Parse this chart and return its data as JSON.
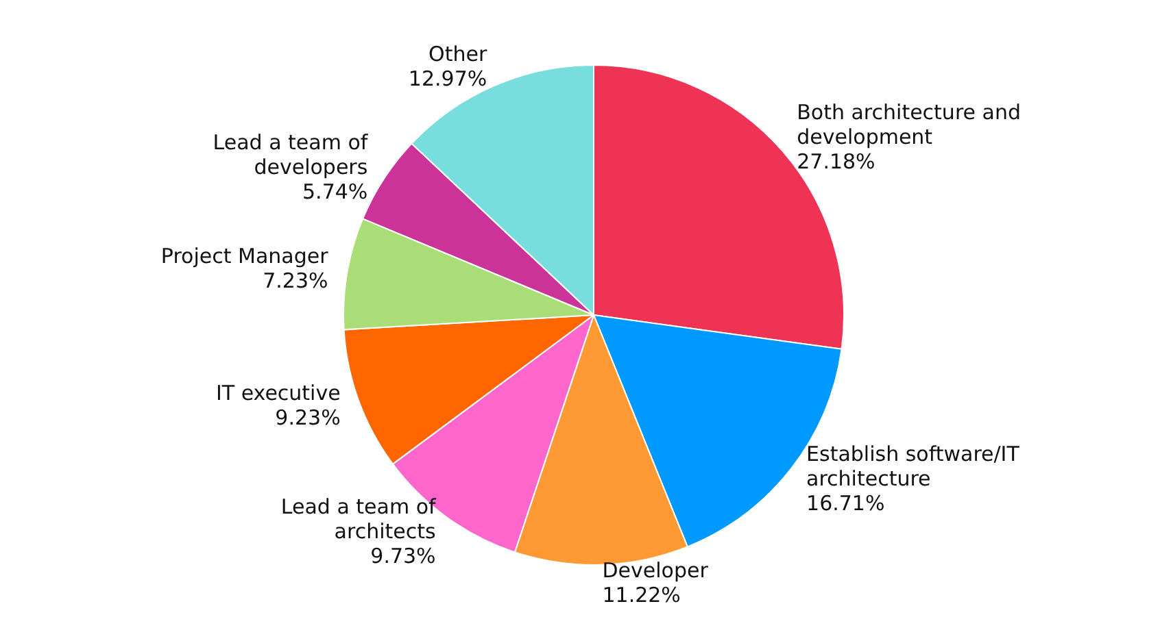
{
  "chart_data": {
    "type": "pie",
    "categories": [
      "Both architecture and development",
      "Establish software/IT architecture",
      "Developer",
      "Lead a team of architects",
      "IT executive",
      "Project Manager",
      "Lead a team of developers",
      "Other"
    ],
    "values": [
      27.18,
      16.71,
      11.22,
      9.73,
      9.23,
      7.23,
      5.74,
      12.97
    ],
    "value_labels": [
      "27.18%",
      "16.71%",
      "11.22%",
      "9.73%",
      "9.23%",
      "7.23%",
      "5.74%",
      "12.97%"
    ],
    "colors": [
      "#ee3355",
      "#0099ff",
      "#ff9933",
      "#ff66cc",
      "#ff6600",
      "#aadd77",
      "#cc3399",
      "#77dddd"
    ],
    "legend": false
  }
}
